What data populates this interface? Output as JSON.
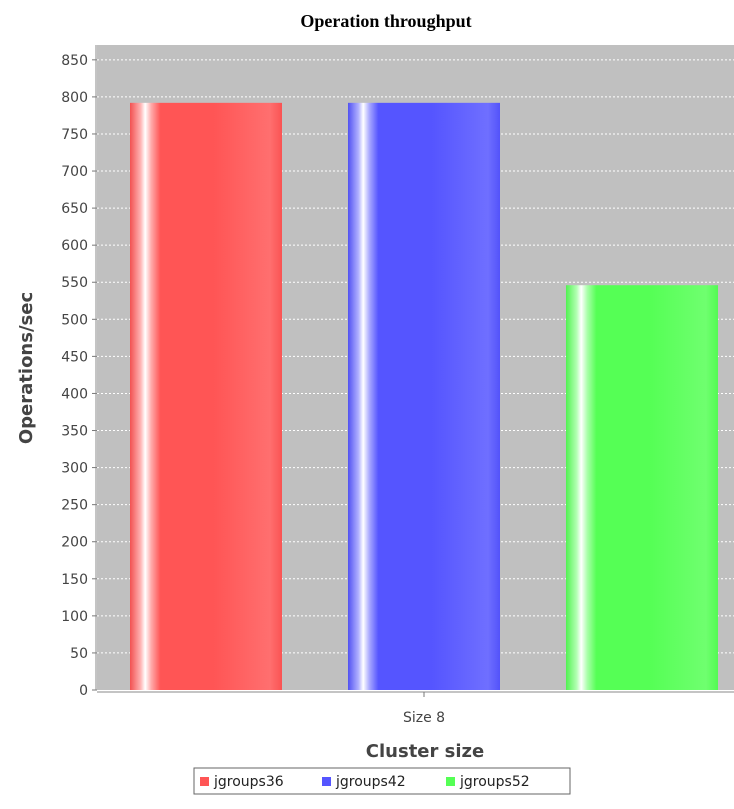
{
  "chart_data": {
    "type": "bar",
    "title": "Operation throughput",
    "xlabel": "Cluster size",
    "ylabel": "Operations/sec",
    "categories": [
      "Size 8"
    ],
    "ylim": [
      0,
      870
    ],
    "yticks": [
      0,
      50,
      100,
      150,
      200,
      250,
      300,
      350,
      400,
      450,
      500,
      550,
      600,
      650,
      700,
      750,
      800,
      850
    ],
    "grid": true,
    "legend": "bottom",
    "series": [
      {
        "name": "jgroups36",
        "values": [
          792
        ],
        "color": "#ff5555"
      },
      {
        "name": "jgroups42",
        "values": [
          792
        ],
        "color": "#5555ff"
      },
      {
        "name": "jgroups52",
        "values": [
          546
        ],
        "color": "#55ff55"
      }
    ]
  }
}
